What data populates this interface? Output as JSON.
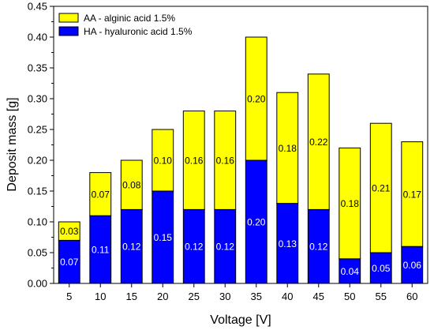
{
  "chart_data": {
    "type": "bar",
    "stacked": true,
    "categories": [
      "5",
      "10",
      "15",
      "20",
      "25",
      "30",
      "35",
      "40",
      "45",
      "50",
      "55",
      "60"
    ],
    "series": [
      {
        "name": "HA - hyaluronic acid 1.5%",
        "color": "#0000ff",
        "label_color": "#ffffff",
        "values": [
          0.07,
          0.11,
          0.12,
          0.15,
          0.12,
          0.12,
          0.2,
          0.13,
          0.12,
          0.04,
          0.05,
          0.06
        ],
        "labels": [
          "0.07",
          "0.11",
          "0.12",
          "0.15",
          "0.12",
          "0.12",
          "0.20",
          "0.13",
          "0.12",
          "0.04",
          "0.05",
          "0.06"
        ]
      },
      {
        "name": "AA - alginic acid 1.5%",
        "color": "#ffff00",
        "label_color": "#000000",
        "values": [
          0.03,
          0.07,
          0.08,
          0.1,
          0.16,
          0.16,
          0.2,
          0.18,
          0.22,
          0.18,
          0.21,
          0.17
        ],
        "labels": [
          "0.03",
          "0.07",
          "0.08",
          "0.10",
          "0.16",
          "0.16",
          "0.20",
          "0.18",
          "0.22",
          "0.18",
          "0.21",
          "0.17"
        ]
      }
    ],
    "xlabel": "Voltage [V]",
    "ylabel": "Deposit mass [g]",
    "ylim": [
      0,
      0.45
    ],
    "yticks": [
      "0.00",
      "0.05",
      "0.10",
      "0.15",
      "0.20",
      "0.25",
      "0.30",
      "0.35",
      "0.40",
      "0.45"
    ],
    "grid": false,
    "legend_position": "top-left"
  }
}
